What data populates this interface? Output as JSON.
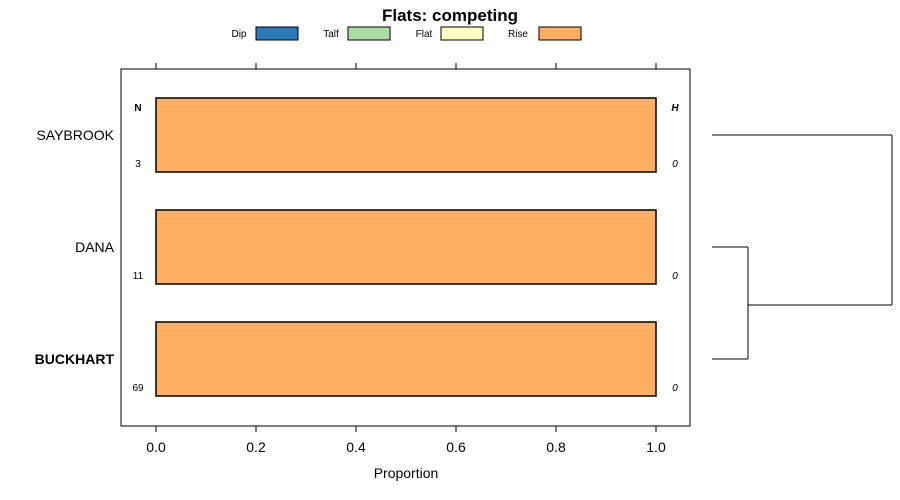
{
  "chart_data": {
    "type": "bar",
    "orientation": "horizontal",
    "stacked": true,
    "title": "Flats: competing",
    "xlabel": "Proportion",
    "xlim": [
      -0.07,
      1.07
    ],
    "xticks": [
      "0.0",
      "0.2",
      "0.4",
      "0.6",
      "0.8",
      "1.0"
    ],
    "legend": {
      "placement": "top",
      "entries": [
        {
          "name": "Dip",
          "color": "#2b7bb9"
        },
        {
          "name": "Talf",
          "color": "#abdda4"
        },
        {
          "name": "Flat",
          "color": "#ffffbf"
        },
        {
          "name": "Rise",
          "color": "#fdae61"
        }
      ]
    },
    "left_header": "N",
    "right_header": "H",
    "categories": [
      {
        "label": "SAYBROOK",
        "bold": false,
        "n": "3",
        "h": "0"
      },
      {
        "label": "DANA",
        "bold": false,
        "n": "11",
        "h": "0"
      },
      {
        "label": "BUCKHART",
        "bold": true,
        "n": "69",
        "h": "0"
      }
    ],
    "series": [
      {
        "name": "Dip",
        "values": [
          0,
          0,
          0
        ]
      },
      {
        "name": "Talf",
        "values": [
          0,
          0,
          0
        ]
      },
      {
        "name": "Flat",
        "values": [
          0,
          0,
          0
        ]
      },
      {
        "name": "Rise",
        "values": [
          1.0,
          1.0,
          1.0
        ]
      }
    ],
    "dendrogram": {
      "leaves": [
        "SAYBROOK",
        "DANA",
        "BUCKHART"
      ],
      "merges": [
        {
          "join": [
            "DANA",
            "BUCKHART"
          ],
          "height": 0.2
        },
        {
          "join": [
            "SAYBROOK",
            "DANA+BUCKHART"
          ],
          "height": 1.0
        }
      ]
    }
  }
}
